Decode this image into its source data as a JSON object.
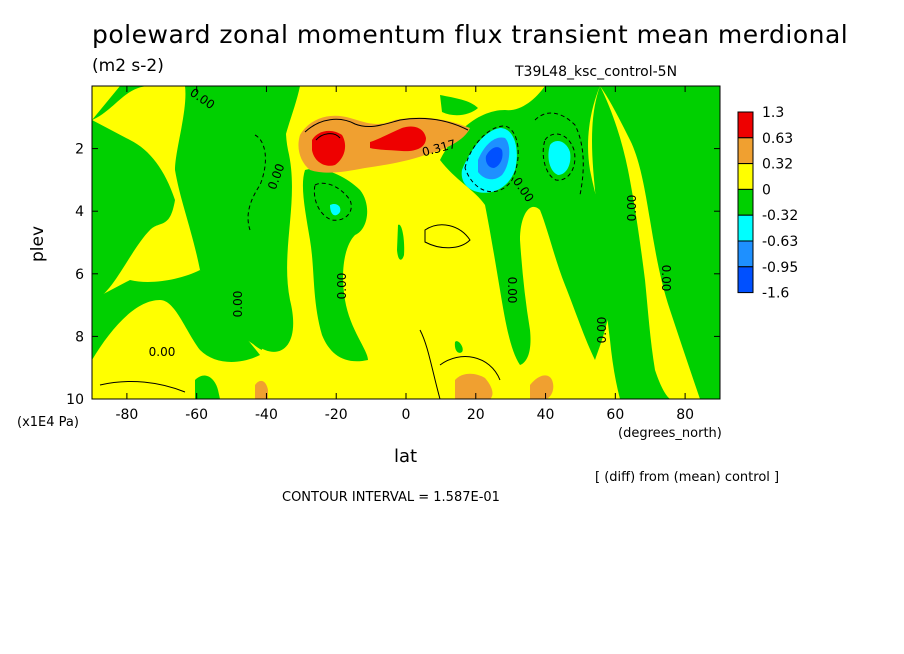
{
  "chart_data": {
    "type": "heatmap",
    "title": "poleward zonal momentum flux transient mean merdional",
    "units": "(m2 s-2)",
    "experiment": "T39L48_ksc_control-5N",
    "xlabel": "lat",
    "x_unit_label": "(degrees_north)",
    "ylabel": "plev",
    "y_unit_label": "(x1E4 Pa)",
    "xlim": [
      -90,
      90
    ],
    "ylim": [
      10,
      0
    ],
    "x_ticks": [
      -80,
      -60,
      -40,
      -20,
      0,
      20,
      40,
      60,
      80
    ],
    "x_tick_labels": [
      "-80",
      "-60",
      "-40",
      "-20",
      "0",
      "20",
      "40",
      "60",
      "80"
    ],
    "y_ticks": [
      2,
      4,
      6,
      8,
      10
    ],
    "y_tick_labels": [
      "2",
      "4",
      "6",
      "8",
      "10"
    ],
    "colorbar": {
      "labels": [
        "1.3",
        "0.63",
        "0.32",
        "0",
        "-0.32",
        "-0.63",
        "-0.95",
        "-1.6"
      ],
      "colors": [
        "#ee0000",
        "#f0a030",
        "#ffff00",
        "#00d000",
        "#00ffff",
        "#1e90ff",
        "#0050ff"
      ]
    },
    "contour_labels": [
      "0.00",
      "0.00",
      "0.00",
      "0.00",
      "0.00",
      "0.00",
      "0.00",
      "0.00",
      "0.00",
      "0.00",
      "0.317"
    ],
    "note": "[ (diff) from (mean) control ]",
    "contour_interval": "CONTOUR INTERVAL = 1.587E-01",
    "features": [
      {
        "lat": -20,
        "plev": 2.0,
        "level": 4
      },
      {
        "lat": -2,
        "plev": 2.0,
        "level": 4
      },
      {
        "lat": -10,
        "plev": 2.0,
        "level": 3
      },
      {
        "lat": 8,
        "plev": 1.8,
        "level": 3
      },
      {
        "lat": 23,
        "plev": 2.4,
        "level": -4
      },
      {
        "lat": 44,
        "plev": 2.5,
        "level": -2
      },
      {
        "lat": -21,
        "plev": 4.0,
        "level": -2
      },
      {
        "lat": 25,
        "plev": 9.6,
        "level": 2
      },
      {
        "lat": 45,
        "plev": 9.7,
        "level": 2
      },
      {
        "lat": -42,
        "plev": 9.8,
        "level": 2
      }
    ]
  }
}
